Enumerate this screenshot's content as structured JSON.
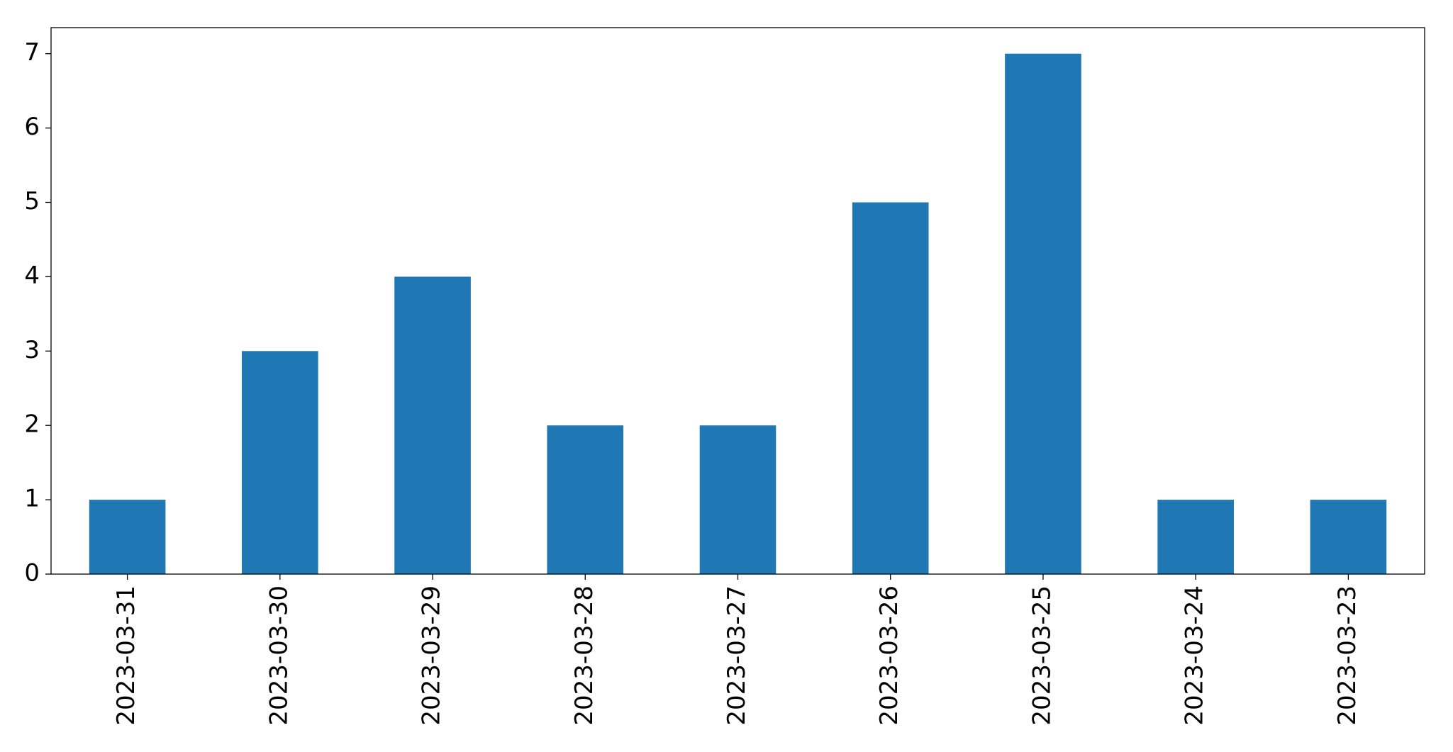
{
  "chart_data": {
    "type": "bar",
    "categories": [
      "2023-03-31",
      "2023-03-30",
      "2023-03-29",
      "2023-03-28",
      "2023-03-27",
      "2023-03-26",
      "2023-03-25",
      "2023-03-24",
      "2023-03-23"
    ],
    "values": [
      1,
      3,
      4,
      2,
      2,
      5,
      7,
      1,
      1
    ],
    "color": "#1f77b4",
    "ylim": [
      0,
      7.35
    ],
    "yticks": [
      0,
      1,
      2,
      3,
      4,
      5,
      6,
      7
    ],
    "grid": false
  }
}
